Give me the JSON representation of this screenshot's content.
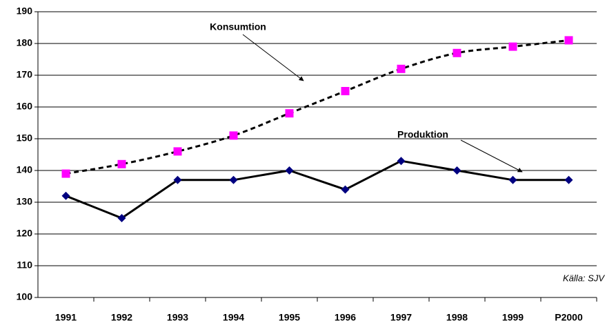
{
  "chart_data": {
    "type": "line",
    "categories": [
      "1991",
      "1992",
      "1993",
      "1994",
      "1995",
      "1996",
      "1997",
      "1998",
      "1999",
      "P2000"
    ],
    "series": [
      {
        "name": "Konsumtion",
        "color": "#ff00ff",
        "line_color": "#000000",
        "marker": "square",
        "dashed": true,
        "values": [
          139,
          142,
          146,
          151,
          158,
          165,
          172,
          177,
          179,
          181
        ]
      },
      {
        "name": "Produktion",
        "color": "#000080",
        "line_color": "#000000",
        "marker": "diamond",
        "dashed": false,
        "values": [
          132,
          125,
          137,
          137,
          140,
          134,
          143,
          140,
          137,
          137
        ]
      }
    ],
    "ylim": [
      100,
      190
    ],
    "yticks": [
      100,
      110,
      120,
      130,
      140,
      150,
      160,
      170,
      180,
      190
    ],
    "grid": true,
    "source": "Källa: SJV"
  }
}
